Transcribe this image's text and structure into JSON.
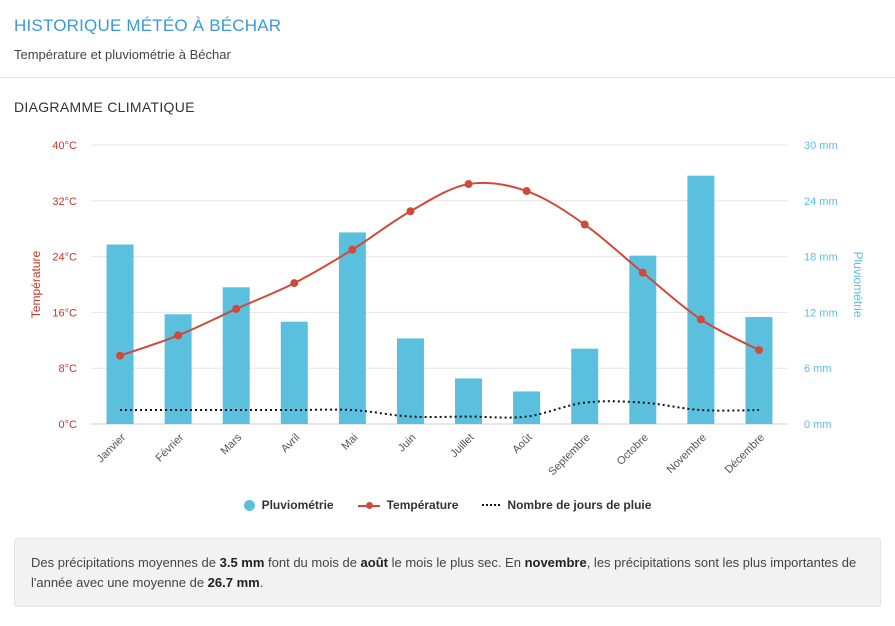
{
  "header": {
    "title": "HISTORIQUE MÉTÉO À BÉCHAR",
    "subtitle": "Température et pluviométrie à Béchar"
  },
  "section": {
    "title": "DIAGRAMME CLIMATIQUE"
  },
  "colors": {
    "title": "#3a9ad9",
    "bars": "#5bc0de",
    "temperature": "#d04a3a",
    "temp_axis": "#c0392b",
    "rain_axis": "#5bc0de",
    "rain_days": "#111111",
    "grid": "#e6e6e6"
  },
  "legend": {
    "precip": "Pluviométrie",
    "temp": "Température",
    "raindays": "Nombre de jours de pluie"
  },
  "chart_data": {
    "type": "bar",
    "categories": [
      "Janvier",
      "Février",
      "Mars",
      "Avril",
      "Mai",
      "Juin",
      "Juillet",
      "Août",
      "Septembre",
      "Octobre",
      "Novembre",
      "Décembre"
    ],
    "series": [
      {
        "name": "Pluviométrie",
        "type": "bar",
        "axis": "right",
        "values": [
          19.3,
          11.8,
          14.7,
          11.0,
          20.6,
          9.2,
          4.9,
          3.5,
          8.1,
          18.1,
          26.7,
          11.5
        ]
      },
      {
        "name": "Température",
        "type": "line",
        "axis": "left",
        "values": [
          9.8,
          12.7,
          16.5,
          20.2,
          25.0,
          30.5,
          34.4,
          33.4,
          28.6,
          21.7,
          15.0,
          10.6
        ]
      },
      {
        "name": "Nombre de jours de pluie",
        "type": "line",
        "axis": "right",
        "style": "dotted",
        "values": [
          1.5,
          1.5,
          1.5,
          1.5,
          1.5,
          0.8,
          0.8,
          0.8,
          2.3,
          2.3,
          1.5,
          1.5
        ]
      }
    ],
    "y_left": {
      "label": "Température",
      "ticks": [
        "0°C",
        "8°C",
        "16°C",
        "24°C",
        "32°C",
        "40°C"
      ],
      "range": [
        0,
        40
      ]
    },
    "y_right": {
      "label": "Pluviométrie",
      "ticks": [
        "0 mm",
        "6 mm",
        "12 mm",
        "18 mm",
        "24 mm",
        "30 mm"
      ],
      "range": [
        0,
        30
      ]
    },
    "grid": true,
    "legend_position": "bottom"
  },
  "note": {
    "t1": "Des précipitations moyennes de ",
    "b1": "3.5 mm",
    "t2": " font du mois de ",
    "b2": "août",
    "t3": " le mois le plus sec. En ",
    "b3": "novembre",
    "t4": ", les précipitations sont les plus importantes de l'année avec une moyenne de ",
    "b4": "26.7 mm",
    "t5": "."
  }
}
